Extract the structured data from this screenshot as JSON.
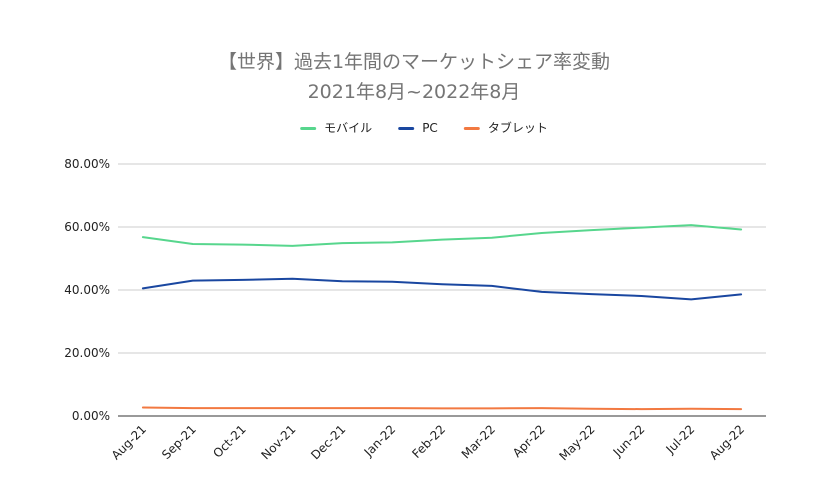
{
  "chart_data": {
    "type": "line",
    "title": "【世界】過去1年間のマーケットシェア率変動",
    "subtitle": "2021年8月~2022年8月",
    "xlabel": "",
    "ylabel": "",
    "categories": [
      "Aug-21",
      "Sep-21",
      "Oct-21",
      "Nov-21",
      "Dec-21",
      "Jan-22",
      "Feb-22",
      "Mar-22",
      "Apr-22",
      "May-22",
      "Jun-22",
      "Jul-22",
      "Aug-22"
    ],
    "ylim": [
      0,
      80
    ],
    "yticks": [
      0,
      20,
      40,
      60,
      80
    ],
    "ytick_labels": [
      "0.00%",
      "20.00%",
      "40.00%",
      "60.00%",
      "80.00%"
    ],
    "grid": true,
    "legend_position": "top",
    "series": [
      {
        "name": "モバイル",
        "color": "#57d68d",
        "values": [
          56.8,
          54.6,
          54.4,
          54.0,
          54.9,
          55.1,
          56.0,
          56.6,
          58.1,
          59.0,
          59.8,
          60.6,
          59.2
        ]
      },
      {
        "name": "PC",
        "color": "#1a47a0",
        "values": [
          40.5,
          43.0,
          43.2,
          43.6,
          42.8,
          42.6,
          41.8,
          41.3,
          39.4,
          38.7,
          38.1,
          37.0,
          38.6
        ]
      },
      {
        "name": "タブレット",
        "color": "#f27941",
        "values": [
          2.7,
          2.5,
          2.5,
          2.5,
          2.5,
          2.5,
          2.4,
          2.4,
          2.5,
          2.3,
          2.2,
          2.3,
          2.2
        ]
      }
    ]
  }
}
